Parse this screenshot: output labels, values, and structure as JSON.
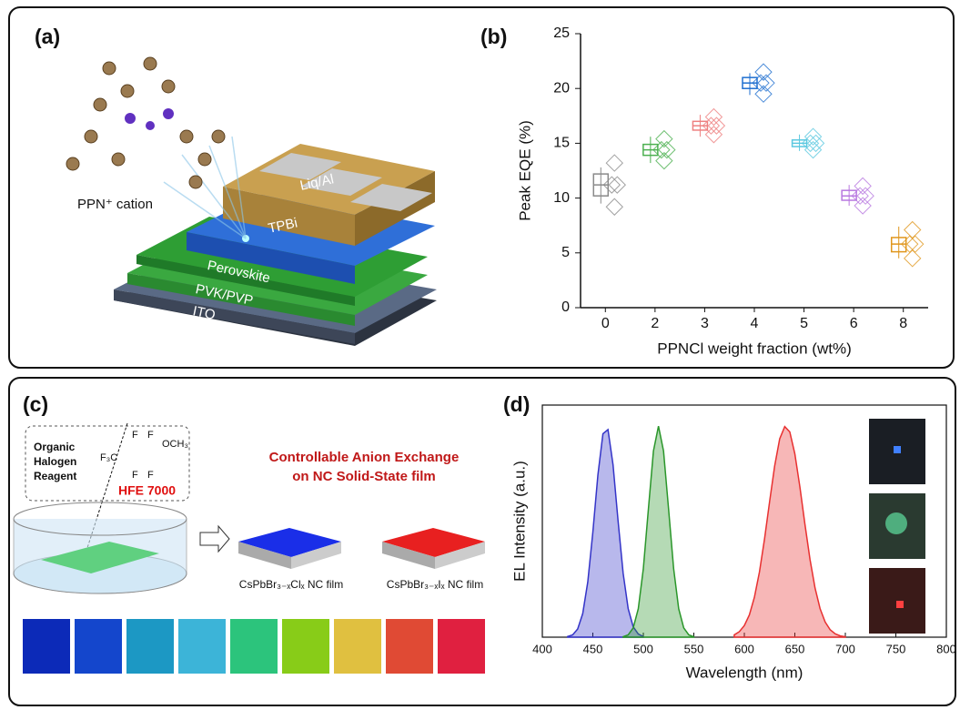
{
  "panel_a": {
    "label": "(a)",
    "cation": "PPN⁺ cation",
    "layers": [
      "Liq/Al",
      "TPBi",
      "Perovskite",
      "PVK/PVP",
      "ITO"
    ]
  },
  "panel_c": {
    "label": "(c)",
    "reagent": [
      "Organic",
      "Halogen",
      "Reagent"
    ],
    "formula": {
      "f3c": "F₃C",
      "och3": "OCH₃",
      "f": "F"
    },
    "reagent_name": "HFE 7000",
    "heading": [
      "Controllable Anion Exchange",
      "on NC Solid-State film"
    ],
    "films": [
      "CsPbBr₃₋ₓClₓ NC film",
      "CsPbBr₃₋ₓIₓ NC film"
    ]
  },
  "chart_data": [
    {
      "type": "box",
      "label": "(b)",
      "y_label": "Peak EQE (%)",
      "x_label": "PPNCl weight fraction (wt%)",
      "categories": [
        "0",
        "2",
        "3",
        "4",
        "5",
        "6",
        "8"
      ],
      "stats": [
        [
          9.5,
          10.2,
          11.2,
          12.2,
          12.8
        ],
        [
          13.2,
          13.9,
          14.4,
          14.9,
          15.6
        ],
        [
          15.6,
          16.2,
          16.6,
          17.0,
          17.6
        ],
        [
          19.4,
          20.0,
          20.5,
          21.0,
          21.4
        ],
        [
          14.3,
          14.7,
          15.0,
          15.3,
          15.8
        ],
        [
          9.3,
          9.8,
          10.2,
          10.7,
          11.2
        ],
        [
          4.5,
          5.1,
          5.8,
          6.4,
          7.4
        ]
      ],
      "colors": [
        "#8a8a8a",
        "#4cb050",
        "#ee8080",
        "#1f6fd0",
        "#5bc8e0",
        "#b878e0",
        "#e0961c"
      ],
      "ylim": [
        0,
        25
      ],
      "yticks": [
        0,
        5,
        10,
        15,
        20,
        25
      ]
    },
    {
      "type": "area",
      "label": "(d)",
      "y_label": "EL Intensity (a.u.)",
      "x_label": "Wavelength (nm)",
      "xlim": [
        400,
        800
      ],
      "xticks": [
        400,
        450,
        500,
        550,
        600,
        650,
        700,
        750,
        800
      ],
      "ylim": [
        0,
        1.1
      ],
      "series": [
        {
          "color": "#3434c8",
          "x": [
            425,
            430,
            435,
            440,
            445,
            450,
            455,
            460,
            465,
            470,
            475,
            480,
            485,
            490,
            495,
            500
          ],
          "values": [
            0.003,
            0.011,
            0.039,
            0.112,
            0.262,
            0.497,
            0.768,
            0.964,
            0.984,
            0.817,
            0.551,
            0.303,
            0.135,
            0.049,
            0.015,
            0.003
          ]
        },
        {
          "color": "#2a962a",
          "x": [
            480,
            485,
            490,
            495,
            500,
            505,
            510,
            515,
            520,
            525,
            530,
            535,
            540,
            545,
            550
          ],
          "values": [
            0.002,
            0.011,
            0.044,
            0.135,
            0.325,
            0.607,
            0.882,
            1.0,
            0.882,
            0.607,
            0.325,
            0.135,
            0.044,
            0.011,
            0.002
          ]
        },
        {
          "color": "#e83030",
          "x": [
            590,
            595,
            600,
            605,
            610,
            615,
            620,
            625,
            630,
            635,
            640,
            645,
            650,
            655,
            660,
            665,
            670,
            675,
            680,
            685,
            690,
            695,
            700
          ],
          "values": [
            0.011,
            0.026,
            0.055,
            0.106,
            0.19,
            0.31,
            0.466,
            0.642,
            0.811,
            0.94,
            0.998,
            0.973,
            0.869,
            0.712,
            0.535,
            0.369,
            0.233,
            0.135,
            0.072,
            0.035,
            0.016,
            0.006,
            0.002
          ]
        }
      ]
    }
  ]
}
